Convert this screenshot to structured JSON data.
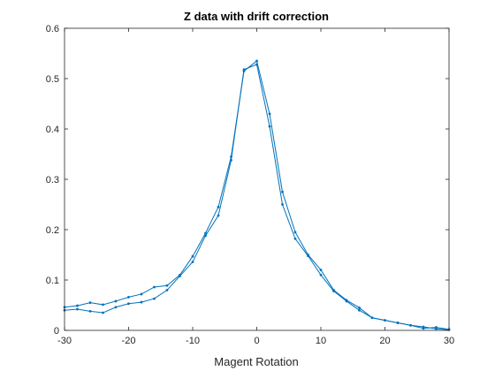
{
  "chart_data": {
    "type": "line",
    "title": "Z data with drift correction",
    "xlabel": "Magent Rotation",
    "ylabel": "",
    "xlim": [
      -30,
      30
    ],
    "ylim": [
      0,
      0.6
    ],
    "xticks": [
      -30,
      -20,
      -10,
      0,
      10,
      20,
      30
    ],
    "yticks": [
      0,
      0.1,
      0.2,
      0.3,
      0.4,
      0.5,
      0.6
    ],
    "xtick_labels": [
      "-30",
      "-20",
      "-10",
      "0",
      "10",
      "20",
      "30"
    ],
    "ytick_labels": [
      "0",
      "0.1",
      "0.2",
      "0.3",
      "0.4",
      "0.5",
      "0.6"
    ],
    "grid": false,
    "line_color": "#0072BD",
    "series": [
      {
        "x": [
          -30,
          -28,
          -26,
          -24,
          -22,
          -20,
          -18,
          -16,
          -14,
          -12,
          -10,
          -8,
          -6,
          -4,
          -2,
          0,
          2,
          4,
          6,
          8,
          10,
          12,
          14,
          16,
          18,
          20,
          22,
          24,
          26,
          28,
          30
        ],
        "y": [
          0.046,
          0.049,
          0.055,
          0.051,
          0.058,
          0.066,
          0.072,
          0.086,
          0.089,
          0.11,
          0.147,
          0.193,
          0.245,
          0.345,
          0.515,
          0.535,
          0.43,
          0.275,
          0.195,
          0.15,
          0.12,
          0.08,
          0.06,
          0.045,
          0.025,
          0.02,
          0.015,
          0.01,
          0.007,
          0.003,
          0.001
        ]
      },
      {
        "x": [
          -30,
          -28,
          -26,
          -24,
          -22,
          -20,
          -18,
          -16,
          -14,
          -12,
          -10,
          -8,
          -6,
          -4,
          -2,
          0,
          2,
          4,
          6,
          8,
          10,
          12,
          14,
          16,
          18,
          20,
          22,
          24,
          26,
          28,
          30
        ],
        "y": [
          0.04,
          0.042,
          0.038,
          0.035,
          0.046,
          0.053,
          0.056,
          0.063,
          0.08,
          0.108,
          0.136,
          0.188,
          0.228,
          0.338,
          0.518,
          0.528,
          0.405,
          0.25,
          0.182,
          0.148,
          0.11,
          0.078,
          0.058,
          0.04,
          0.025,
          0.02,
          0.015,
          0.01,
          0.004,
          0.006,
          0.002
        ]
      }
    ]
  }
}
